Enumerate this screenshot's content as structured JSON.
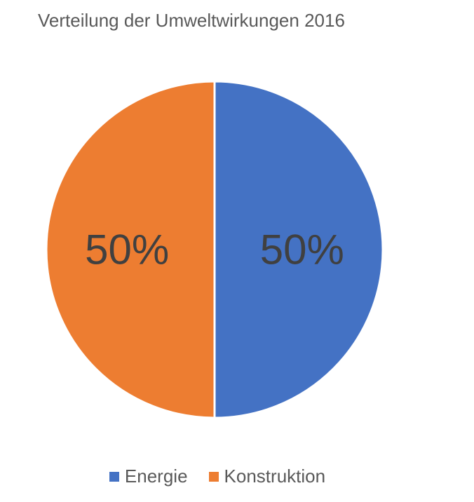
{
  "chart_data": {
    "type": "pie",
    "title": "Verteilung der Umweltwirkungen 2016",
    "categories": [
      "Energie",
      "Konstruktion"
    ],
    "values": [
      50,
      50
    ],
    "data_labels": [
      "50%",
      "50%"
    ],
    "colors": [
      "#4472C4",
      "#ED7D31"
    ],
    "legend_position": "bottom",
    "start_angle": "12 o'clock, clockwise"
  }
}
